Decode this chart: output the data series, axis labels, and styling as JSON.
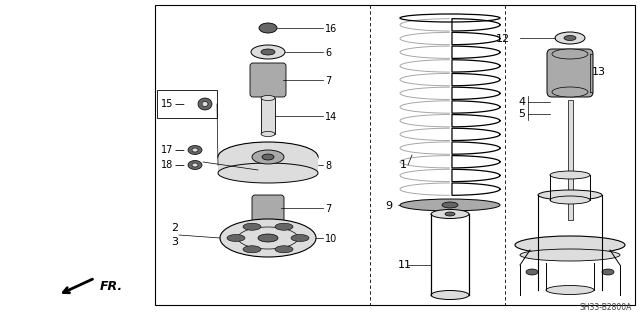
{
  "bg_color": "#ffffff",
  "line_color": "#000000",
  "gray_fill": "#aaaaaa",
  "light_gray": "#dddddd",
  "dark_gray": "#666666",
  "diagram_ref": "SH33-B2800A",
  "fr_label": "FR.",
  "font_size": 7
}
